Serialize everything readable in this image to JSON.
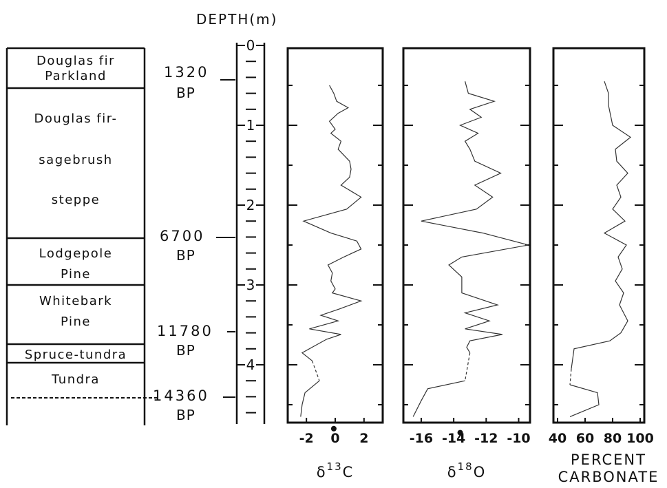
{
  "chart_data": {
    "type": "line",
    "title": "DEPTH(m)",
    "depth_axis": {
      "label": "DEPTH(m)",
      "range": [
        0,
        4.7
      ],
      "ticks": [
        "0",
        "1",
        "2",
        "3",
        "4"
      ]
    },
    "zones": [
      {
        "name_lines": [
          "Douglas fir",
          "Parkland"
        ]
      },
      {
        "name_lines": [
          "Douglas fir-",
          "sagebrush",
          "steppe"
        ]
      },
      {
        "name_lines": [
          "Lodgepole",
          "Pine"
        ]
      },
      {
        "name_lines": [
          "Whitebark",
          "Pine"
        ]
      },
      {
        "name_lines": [
          "Spruce-tundra"
        ]
      },
      {
        "name_lines": [
          "Tundra"
        ]
      }
    ],
    "dates": [
      {
        "value": "1320",
        "unit": "BP",
        "depth": 0.5
      },
      {
        "value": "6700",
        "unit": "BP",
        "depth": 2.4
      },
      {
        "value": "11780",
        "unit": "BP",
        "depth": 3.6
      },
      {
        "value": "14360",
        "unit": "BP",
        "depth": 4.55
      }
    ],
    "panels": [
      {
        "xlabel": "δ13C",
        "xlabel_base": "δ",
        "xlabel_sup": "13",
        "xlabel_elem": "C",
        "ticks": [
          "-2",
          "0",
          "2"
        ],
        "tick_values": [
          -2,
          0,
          2
        ],
        "xlim": [
          -3.3,
          3.3
        ],
        "series": [
          {
            "depth": 0.5,
            "value": -0.4
          },
          {
            "depth": 0.6,
            "value": -0.1
          },
          {
            "depth": 0.7,
            "value": 0.1
          },
          {
            "depth": 0.78,
            "value": 0.9
          },
          {
            "depth": 0.85,
            "value": 0.2
          },
          {
            "depth": 0.95,
            "value": -0.4
          },
          {
            "depth": 1.05,
            "value": 0.0
          },
          {
            "depth": 1.1,
            "value": -0.3
          },
          {
            "depth": 1.2,
            "value": 0.4
          },
          {
            "depth": 1.3,
            "value": 0.2
          },
          {
            "depth": 1.45,
            "value": 1.0
          },
          {
            "depth": 1.55,
            "value": 1.1
          },
          {
            "depth": 1.65,
            "value": 1.0
          },
          {
            "depth": 1.75,
            "value": 0.4
          },
          {
            "depth": 1.9,
            "value": 1.8
          },
          {
            "depth": 2.05,
            "value": 0.8
          },
          {
            "depth": 2.2,
            "value": -2.2
          },
          {
            "depth": 2.35,
            "value": -0.3
          },
          {
            "depth": 2.45,
            "value": 1.5
          },
          {
            "depth": 2.55,
            "value": 1.8
          },
          {
            "depth": 2.65,
            "value": 0.6
          },
          {
            "depth": 2.75,
            "value": -0.5
          },
          {
            "depth": 2.85,
            "value": -0.2
          },
          {
            "depth": 2.95,
            "value": -0.3
          },
          {
            "depth": 3.05,
            "value": 0.0
          },
          {
            "depth": 3.1,
            "value": -0.2
          },
          {
            "depth": 3.2,
            "value": 1.8
          },
          {
            "depth": 3.3,
            "value": 0.3
          },
          {
            "depth": 3.38,
            "value": -1.0
          },
          {
            "depth": 3.45,
            "value": 0.2
          },
          {
            "depth": 3.55,
            "value": -1.8
          },
          {
            "depth": 3.62,
            "value": 0.4
          },
          {
            "depth": 3.68,
            "value": -0.6
          },
          {
            "depth": 3.75,
            "value": -1.3
          },
          {
            "depth": 3.85,
            "value": -2.3
          },
          {
            "depth": 3.95,
            "value": -1.6
          }
        ],
        "dashed": [
          {
            "depth": 3.95,
            "value": -1.6
          },
          {
            "depth": 4.2,
            "value": -1.1
          }
        ],
        "series2": [
          {
            "depth": 4.2,
            "value": -1.1
          },
          {
            "depth": 4.35,
            "value": -2.1
          },
          {
            "depth": 4.5,
            "value": -2.3
          },
          {
            "depth": 4.65,
            "value": -2.4
          }
        ],
        "point": {
          "depth": 4.8,
          "value": -0.1
        }
      },
      {
        "xlabel": "δ18O",
        "xlabel_base": "δ",
        "xlabel_sup": "18",
        "xlabel_elem": "O",
        "ticks": [
          "-16",
          "-14",
          "-12",
          "-10"
        ],
        "tick_values": [
          -16,
          -14,
          -12,
          -10
        ],
        "xlim": [
          -17.1,
          -9.3
        ],
        "series": [
          {
            "depth": 0.45,
            "value": -13.3
          },
          {
            "depth": 0.6,
            "value": -13.1
          },
          {
            "depth": 0.7,
            "value": -11.5
          },
          {
            "depth": 0.8,
            "value": -13.0
          },
          {
            "depth": 0.9,
            "value": -12.3
          },
          {
            "depth": 1.0,
            "value": -13.6
          },
          {
            "depth": 1.1,
            "value": -12.5
          },
          {
            "depth": 1.2,
            "value": -13.3
          },
          {
            "depth": 1.3,
            "value": -13.0
          },
          {
            "depth": 1.45,
            "value": -12.7
          },
          {
            "depth": 1.6,
            "value": -11.1
          },
          {
            "depth": 1.75,
            "value": -12.7
          },
          {
            "depth": 1.9,
            "value": -11.6
          },
          {
            "depth": 2.05,
            "value": -12.6
          },
          {
            "depth": 2.2,
            "value": -16.0
          },
          {
            "depth": 2.35,
            "value": -12.2
          },
          {
            "depth": 2.5,
            "value": -9.4
          },
          {
            "depth": 2.65,
            "value": -13.5
          },
          {
            "depth": 2.75,
            "value": -14.3
          },
          {
            "depth": 2.9,
            "value": -13.5
          },
          {
            "depth": 3.1,
            "value": -13.5
          },
          {
            "depth": 3.25,
            "value": -11.3
          },
          {
            "depth": 3.35,
            "value": -13.3
          },
          {
            "depth": 3.45,
            "value": -11.8
          },
          {
            "depth": 3.55,
            "value": -13.3
          },
          {
            "depth": 3.62,
            "value": -11.0
          },
          {
            "depth": 3.7,
            "value": -13.0
          },
          {
            "depth": 3.78,
            "value": -13.2
          },
          {
            "depth": 3.85,
            "value": -13.0
          }
        ],
        "dashed": [
          {
            "depth": 3.85,
            "value": -13.0
          },
          {
            "depth": 4.2,
            "value": -13.3
          }
        ],
        "series2": [
          {
            "depth": 4.2,
            "value": -13.3
          },
          {
            "depth": 4.3,
            "value": -15.6
          },
          {
            "depth": 4.45,
            "value": -16.0
          },
          {
            "depth": 4.65,
            "value": -16.5
          }
        ],
        "point": {
          "depth": 4.85,
          "value": -13.6
        }
      },
      {
        "xlabel": "PERCENT",
        "xlabel2": "CARBONATE",
        "ticks": [
          "40",
          "60",
          "80",
          "100"
        ],
        "tick_values": [
          40,
          60,
          80,
          100
        ],
        "xlim": [
          37,
          103
        ],
        "series": [
          {
            "depth": 0.45,
            "value": 74
          },
          {
            "depth": 0.6,
            "value": 77
          },
          {
            "depth": 0.75,
            "value": 77
          },
          {
            "depth": 1.0,
            "value": 80
          },
          {
            "depth": 1.15,
            "value": 93
          },
          {
            "depth": 1.3,
            "value": 82
          },
          {
            "depth": 1.45,
            "value": 83
          },
          {
            "depth": 1.6,
            "value": 91
          },
          {
            "depth": 1.75,
            "value": 83
          },
          {
            "depth": 1.9,
            "value": 86
          },
          {
            "depth": 2.05,
            "value": 80
          },
          {
            "depth": 2.2,
            "value": 89
          },
          {
            "depth": 2.35,
            "value": 74
          },
          {
            "depth": 2.5,
            "value": 90
          },
          {
            "depth": 2.65,
            "value": 84
          },
          {
            "depth": 2.8,
            "value": 87
          },
          {
            "depth": 2.95,
            "value": 82
          },
          {
            "depth": 3.1,
            "value": 88
          },
          {
            "depth": 3.25,
            "value": 85
          },
          {
            "depth": 3.45,
            "value": 91
          },
          {
            "depth": 3.6,
            "value": 86
          },
          {
            "depth": 3.7,
            "value": 78
          },
          {
            "depth": 3.8,
            "value": 52
          },
          {
            "depth": 4.05,
            "value": 50
          }
        ],
        "dashed": [
          {
            "depth": 4.05,
            "value": 50
          },
          {
            "depth": 4.25,
            "value": 49
          }
        ],
        "series2": [
          {
            "depth": 4.25,
            "value": 49
          },
          {
            "depth": 4.35,
            "value": 69
          },
          {
            "depth": 4.5,
            "value": 70
          },
          {
            "depth": 4.65,
            "value": 49
          }
        ]
      }
    ]
  }
}
